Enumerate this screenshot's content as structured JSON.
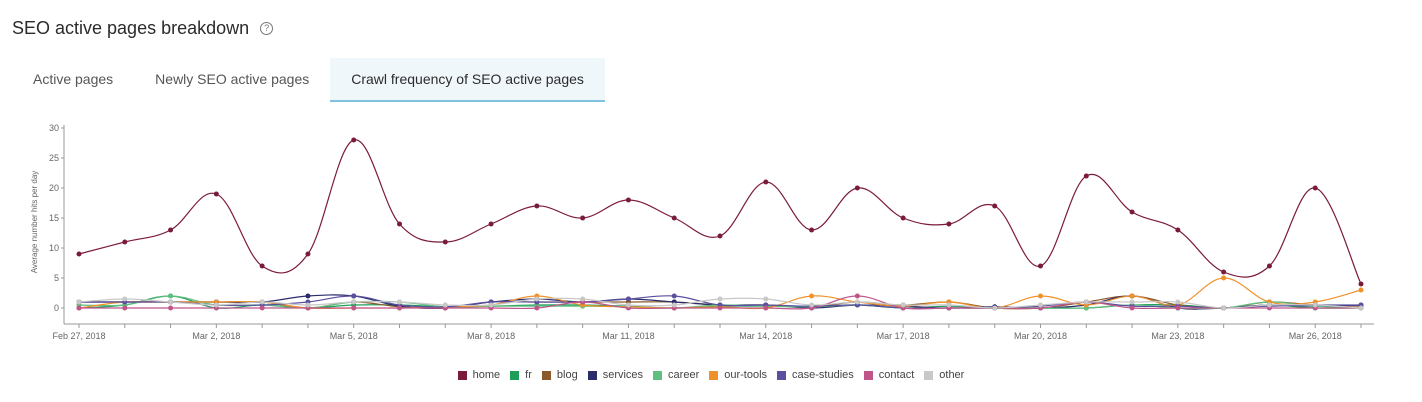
{
  "header": {
    "title": "SEO active pages breakdown",
    "help_glyph": "?"
  },
  "tabs": [
    {
      "label": "Active pages",
      "active": false
    },
    {
      "label": "Newly SEO active pages",
      "active": false
    },
    {
      "label": "Crawl frequency of SEO active pages",
      "active": true
    }
  ],
  "chart_data": {
    "type": "line",
    "ylabel": "Average number hits per day",
    "ylim": [
      0,
      30
    ],
    "yticks": [
      0,
      5,
      10,
      15,
      20,
      25,
      30
    ],
    "grid": false,
    "legend_position": "bottom-center",
    "x": [
      "Feb 27, 2018",
      "Feb 28, 2018",
      "Mar 1, 2018",
      "Mar 2, 2018",
      "Mar 3, 2018",
      "Mar 4, 2018",
      "Mar 5, 2018",
      "Mar 6, 2018",
      "Mar 7, 2018",
      "Mar 8, 2018",
      "Mar 9, 2018",
      "Mar 10, 2018",
      "Mar 11, 2018",
      "Mar 12, 2018",
      "Mar 13, 2018",
      "Mar 14, 2018",
      "Mar 15, 2018",
      "Mar 16, 2018",
      "Mar 17, 2018",
      "Mar 18, 2018",
      "Mar 19, 2018",
      "Mar 20, 2018",
      "Mar 21, 2018",
      "Mar 22, 2018",
      "Mar 23, 2018",
      "Mar 24, 2018",
      "Mar 25, 2018",
      "Mar 26, 2018",
      "Mar 27, 2018"
    ],
    "xtick_labels": [
      "Feb 27, 2018",
      "Mar 2, 2018",
      "Mar 5, 2018",
      "Mar 8, 2018",
      "Mar 11, 2018",
      "Mar 14, 2018",
      "Mar 17, 2018",
      "Mar 20, 2018",
      "Mar 23, 2018",
      "Mar 26, 2018"
    ],
    "series": [
      {
        "name": "home",
        "color": "#7b1b3a",
        "values": [
          9,
          11,
          13,
          19,
          7,
          9,
          28,
          14,
          11,
          14,
          17,
          15,
          18,
          15,
          12,
          21,
          13,
          20,
          15,
          14,
          17,
          7,
          22,
          16,
          13,
          6,
          7,
          20,
          4
        ]
      },
      {
        "name": "fr",
        "color": "#1f9e5a",
        "values": [
          0,
          0.5,
          2,
          0,
          0.5,
          0,
          0.5,
          0.5,
          0.2,
          0.3,
          0.5,
          0.5,
          0.3,
          0,
          0.3,
          0.3,
          0.3,
          0.5,
          0,
          0.3,
          0,
          0,
          0,
          0.5,
          0.5,
          0,
          0.5,
          0,
          0
        ]
      },
      {
        "name": "blog",
        "color": "#8b5a2b",
        "values": [
          1,
          1,
          1,
          1,
          1,
          0,
          1,
          0.2,
          0,
          1,
          1,
          1,
          1,
          1,
          0.5,
          0.5,
          0.2,
          1,
          0.5,
          1,
          0,
          0,
          1,
          2,
          0.5,
          0,
          1,
          0.5,
          0.3
        ]
      },
      {
        "name": "services",
        "color": "#2b2b6b",
        "values": [
          1,
          1,
          1,
          1,
          1,
          2,
          2,
          0.3,
          0,
          1,
          1.5,
          1,
          1.5,
          1,
          0.5,
          0.5,
          0,
          0.5,
          0.3,
          0,
          0.2,
          0,
          0.5,
          2,
          0,
          0,
          0.5,
          0.3,
          0.5
        ]
      },
      {
        "name": "career",
        "color": "#5fbf7f",
        "values": [
          0.5,
          0.5,
          2,
          0.5,
          0.5,
          0,
          1,
          1,
          0.2,
          0.3,
          0.3,
          0.3,
          0.2,
          0,
          0.5,
          0.3,
          0.2,
          0.5,
          0,
          0,
          0,
          0,
          0,
          0.5,
          0,
          0,
          1,
          0.3,
          0
        ]
      },
      {
        "name": "our-tools",
        "color": "#f0922b",
        "values": [
          0,
          1,
          1,
          1,
          1,
          0,
          0,
          0,
          0.2,
          0.5,
          2,
          0.5,
          0.2,
          0,
          0.2,
          0,
          2,
          1,
          0.3,
          1,
          0,
          2,
          0.5,
          2,
          0.5,
          5,
          1,
          1,
          3
        ]
      },
      {
        "name": "case-studies",
        "color": "#5a4fa0",
        "values": [
          1,
          1,
          1,
          0.5,
          0.5,
          1,
          2,
          0.5,
          0.2,
          1,
          1,
          1,
          1.5,
          2,
          0.5,
          0.5,
          0.3,
          0.5,
          0,
          0,
          0,
          0.3,
          1,
          0.3,
          0.3,
          0,
          0.3,
          0.5,
          0.5
        ]
      },
      {
        "name": "contact",
        "color": "#c0558a",
        "values": [
          0,
          0,
          0,
          0,
          0,
          0,
          0,
          0,
          0,
          0,
          0,
          1,
          0,
          0,
          0,
          0,
          0,
          2,
          0,
          0,
          0,
          0,
          1,
          0,
          0,
          0,
          0,
          0,
          0
        ]
      },
      {
        "name": "other",
        "color": "#c8c8c8",
        "values": [
          1,
          1.5,
          1,
          0.5,
          1,
          0.5,
          1,
          1,
          0.5,
          0.5,
          1.5,
          1.5,
          0.5,
          0.5,
          1.5,
          1.5,
          0.5,
          1,
          0.5,
          0.5,
          0,
          0.5,
          1,
          1,
          1,
          0,
          0.5,
          0.5,
          0
        ]
      }
    ]
  }
}
